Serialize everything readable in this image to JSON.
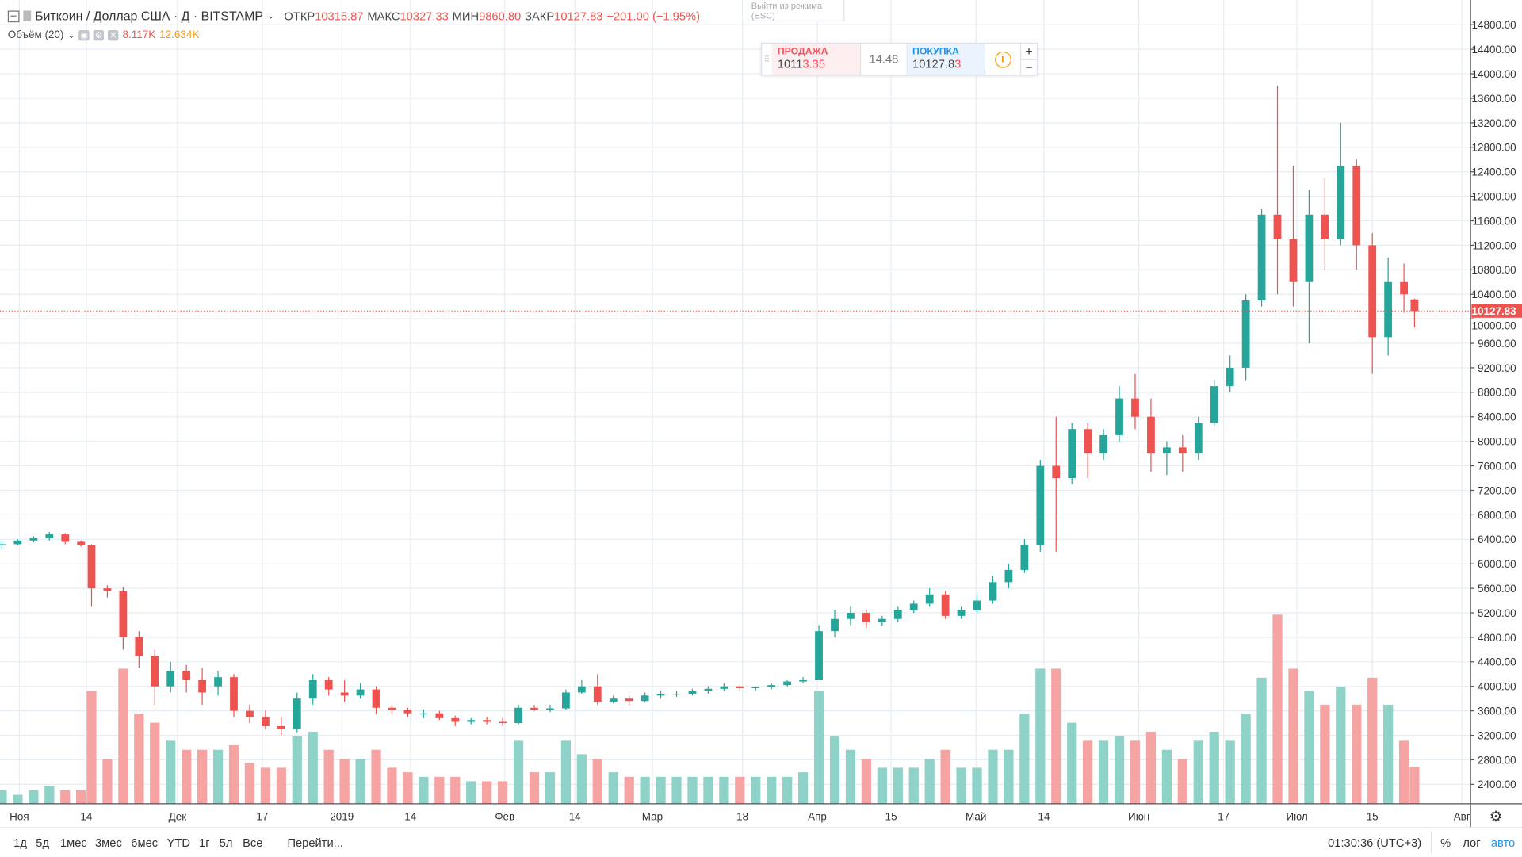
{
  "header": {
    "symbol": "Биткоин / Доллар США · Д · BITSTAMP",
    "open_label": "ОТКР",
    "open": "10315.87",
    "high_label": "МАКС",
    "high": "10327.33",
    "low_label": "МИН",
    "low": "9860.80",
    "close_label": "ЗАКР",
    "close": "10127.83",
    "change": "−201.00 (−1.95%)"
  },
  "volume_legend": {
    "label": "Объём (20)",
    "value1": "8.117K",
    "value2": "12.634K"
  },
  "exit_fullscreen": "Выйти из режима (ESC)",
  "trade_panel": {
    "sell_label": "ПРОДАЖА",
    "sell_main": "1011",
    "sell_hl": "3.35",
    "spread": "14.48",
    "buy_label": "ПОКУПКА",
    "buy_main": "10127.8",
    "buy_hl": "3",
    "plus": "+",
    "minus": "−"
  },
  "bottom": {
    "ranges": [
      "1д",
      "5д",
      "1мес",
      "3мес",
      "6мес",
      "YTD",
      "1г",
      "5л",
      "Все"
    ],
    "goto": "Перейти...",
    "time": "01:30:36 (UTC+3)",
    "percent": "%",
    "log": "лог",
    "auto": "авто"
  },
  "colors": {
    "up": "#26a69a",
    "down": "#ef5350",
    "vol_up": "#8fd2c8",
    "vol_down": "#f5a3a3",
    "grid": "#e6edf3",
    "price_line": "#ef5350"
  },
  "chart_data": {
    "type": "candlestick",
    "title": "Биткоин / Доллар США · Д · BITSTAMP",
    "x_unit": "days since Oct 28 2018",
    "ylim": [
      2200,
      14900
    ],
    "y_ticks": [
      2400,
      2800,
      3200,
      3600,
      4000,
      4400,
      4800,
      5200,
      5600,
      6000,
      6400,
      6800,
      7200,
      7600,
      8000,
      8400,
      8800,
      9200,
      9600,
      10000,
      10400,
      10800,
      11200,
      11600,
      12000,
      12400,
      12800,
      13200,
      13600,
      14000,
      14400,
      14800
    ],
    "last_price": "10127.83",
    "x_labels": [
      {
        "day": 3.3,
        "text": "Ноя"
      },
      {
        "day": 16,
        "text": "14"
      },
      {
        "day": 33.3,
        "text": "Дек"
      },
      {
        "day": 49.4,
        "text": "17"
      },
      {
        "day": 64.5,
        "text": "2019"
      },
      {
        "day": 77.5,
        "text": "14"
      },
      {
        "day": 95.4,
        "text": "Фев"
      },
      {
        "day": 108.7,
        "text": "14"
      },
      {
        "day": 123.4,
        "text": "Мар"
      },
      {
        "day": 140.5,
        "text": "18"
      },
      {
        "day": 154.7,
        "text": "Апр"
      },
      {
        "day": 168.7,
        "text": "15"
      },
      {
        "day": 184.8,
        "text": "Май"
      },
      {
        "day": 197.7,
        "text": "14"
      },
      {
        "day": 215.7,
        "text": "Июн"
      },
      {
        "day": 231.8,
        "text": "17"
      },
      {
        "day": 245.7,
        "text": "Июл"
      },
      {
        "day": 260,
        "text": "15"
      },
      {
        "day": 277,
        "text": "Авг"
      }
    ],
    "candles_fields": [
      "day",
      "open",
      "high",
      "low",
      "close",
      "volume_k"
    ],
    "candles": [
      [
        0,
        6300,
        6380,
        6250,
        6320,
        3
      ],
      [
        3,
        6320,
        6400,
        6300,
        6380,
        2
      ],
      [
        6,
        6380,
        6450,
        6350,
        6420,
        3
      ],
      [
        9,
        6420,
        6520,
        6380,
        6480,
        4
      ],
      [
        12,
        6480,
        6500,
        6320,
        6360,
        3
      ],
      [
        15,
        6360,
        6380,
        6280,
        6300,
        3
      ],
      [
        17,
        6300,
        6320,
        5300,
        5600,
        25
      ],
      [
        20,
        5600,
        5650,
        5450,
        5550,
        10
      ],
      [
        23,
        5550,
        5620,
        4600,
        4800,
        30
      ],
      [
        26,
        4800,
        4900,
        4300,
        4500,
        20
      ],
      [
        29,
        4500,
        4600,
        3700,
        4000,
        18
      ],
      [
        32,
        4000,
        4400,
        3900,
        4250,
        14
      ],
      [
        35,
        4250,
        4350,
        3900,
        4100,
        12
      ],
      [
        38,
        4100,
        4300,
        3700,
        3900,
        12
      ],
      [
        41,
        4000,
        4250,
        3850,
        4150,
        12
      ],
      [
        44,
        4150,
        4200,
        3500,
        3600,
        13
      ],
      [
        47,
        3600,
        3700,
        3400,
        3500,
        9
      ],
      [
        50,
        3500,
        3600,
        3300,
        3350,
        8
      ],
      [
        53,
        3350,
        3500,
        3200,
        3300,
        8
      ],
      [
        56,
        3300,
        3900,
        3250,
        3800,
        15
      ],
      [
        59,
        3800,
        4200,
        3700,
        4100,
        16
      ],
      [
        62,
        4100,
        4150,
        3850,
        3950,
        12
      ],
      [
        65,
        3900,
        4100,
        3750,
        3850,
        10
      ],
      [
        68,
        3850,
        4050,
        3800,
        3950,
        10
      ],
      [
        71,
        3950,
        4000,
        3550,
        3650,
        12
      ],
      [
        74,
        3650,
        3700,
        3550,
        3620,
        8
      ],
      [
        77,
        3620,
        3650,
        3500,
        3560,
        7
      ],
      [
        80,
        3560,
        3620,
        3480,
        3560,
        6
      ],
      [
        83,
        3560,
        3600,
        3450,
        3480,
        6
      ],
      [
        86,
        3480,
        3520,
        3350,
        3420,
        6
      ],
      [
        89,
        3420,
        3480,
        3380,
        3450,
        5
      ],
      [
        92,
        3450,
        3500,
        3380,
        3420,
        5
      ],
      [
        95,
        3420,
        3480,
        3350,
        3400,
        5
      ],
      [
        98,
        3400,
        3700,
        3380,
        3650,
        14
      ],
      [
        101,
        3650,
        3700,
        3600,
        3620,
        7
      ],
      [
        104,
        3620,
        3700,
        3580,
        3640,
        7
      ],
      [
        107,
        3640,
        3950,
        3620,
        3900,
        14
      ],
      [
        110,
        3900,
        4100,
        3880,
        4000,
        11
      ],
      [
        113,
        4000,
        4200,
        3700,
        3750,
        10
      ],
      [
        116,
        3750,
        3850,
        3720,
        3800,
        7
      ],
      [
        119,
        3800,
        3850,
        3700,
        3760,
        6
      ],
      [
        122,
        3760,
        3900,
        3740,
        3850,
        6
      ],
      [
        125,
        3850,
        3920,
        3800,
        3870,
        6
      ],
      [
        128,
        3870,
        3920,
        3830,
        3880,
        6
      ],
      [
        131,
        3880,
        3960,
        3850,
        3920,
        6
      ],
      [
        134,
        3920,
        4000,
        3880,
        3960,
        6
      ],
      [
        137,
        3960,
        4050,
        3920,
        4000,
        6
      ],
      [
        140,
        4000,
        4020,
        3920,
        3970,
        6
      ],
      [
        143,
        3970,
        4000,
        3930,
        3990,
        6
      ],
      [
        146,
        3990,
        4050,
        3950,
        4020,
        6
      ],
      [
        149,
        4020,
        4100,
        4000,
        4080,
        6
      ],
      [
        152,
        4080,
        4150,
        4050,
        4100,
        7
      ],
      [
        155,
        4100,
        5000,
        4100,
        4900,
        25
      ],
      [
        158,
        4900,
        5250,
        4800,
        5100,
        15
      ],
      [
        161,
        5100,
        5300,
        5000,
        5200,
        12
      ],
      [
        164,
        5200,
        5250,
        4950,
        5050,
        10
      ],
      [
        167,
        5050,
        5150,
        4980,
        5100,
        8
      ],
      [
        170,
        5100,
        5300,
        5050,
        5250,
        8
      ],
      [
        173,
        5250,
        5400,
        5200,
        5350,
        8
      ],
      [
        176,
        5350,
        5600,
        5300,
        5500,
        10
      ],
      [
        179,
        5500,
        5550,
        5100,
        5150,
        12
      ],
      [
        182,
        5150,
        5300,
        5100,
        5250,
        8
      ],
      [
        185,
        5250,
        5500,
        5200,
        5400,
        8
      ],
      [
        188,
        5400,
        5800,
        5350,
        5700,
        12
      ],
      [
        191,
        5700,
        6000,
        5600,
        5900,
        12
      ],
      [
        194,
        5900,
        6400,
        5850,
        6300,
        20
      ],
      [
        197,
        6300,
        7700,
        6200,
        7600,
        30
      ],
      [
        200,
        7600,
        8400,
        6200,
        7400,
        30
      ],
      [
        203,
        7400,
        8300,
        7300,
        8200,
        18
      ],
      [
        206,
        8200,
        8300,
        7400,
        7800,
        14
      ],
      [
        209,
        7800,
        8200,
        7700,
        8100,
        14
      ],
      [
        212,
        8100,
        8900,
        8000,
        8700,
        15
      ],
      [
        215,
        8700,
        9100,
        8200,
        8400,
        14
      ],
      [
        218,
        8400,
        8700,
        7500,
        7800,
        16
      ],
      [
        221,
        7800,
        8000,
        7450,
        7900,
        12
      ],
      [
        224,
        7900,
        8100,
        7500,
        7800,
        10
      ],
      [
        227,
        7800,
        8400,
        7700,
        8300,
        14
      ],
      [
        230,
        8300,
        9000,
        8250,
        8900,
        16
      ],
      [
        233,
        8900,
        9400,
        8800,
        9200,
        14
      ],
      [
        236,
        9200,
        10400,
        9000,
        10300,
        20
      ],
      [
        239,
        10300,
        11800,
        10200,
        11700,
        28
      ],
      [
        242,
        11700,
        13800,
        10400,
        11300,
        42
      ],
      [
        245,
        11300,
        12500,
        10200,
        10600,
        30
      ],
      [
        248,
        10600,
        12100,
        9600,
        11700,
        25
      ],
      [
        251,
        11700,
        12300,
        10800,
        11300,
        22
      ],
      [
        254,
        11300,
        13200,
        11200,
        12500,
        26
      ],
      [
        257,
        12500,
        12600,
        10800,
        11200,
        22
      ],
      [
        260,
        11200,
        11400,
        9100,
        9700,
        28
      ],
      [
        263,
        9700,
        11000,
        9400,
        10600,
        22
      ],
      [
        266,
        10600,
        10900,
        10100,
        10400,
        14
      ],
      [
        268,
        10315.87,
        10327.33,
        9860.8,
        10127.83,
        8.117
      ]
    ]
  }
}
